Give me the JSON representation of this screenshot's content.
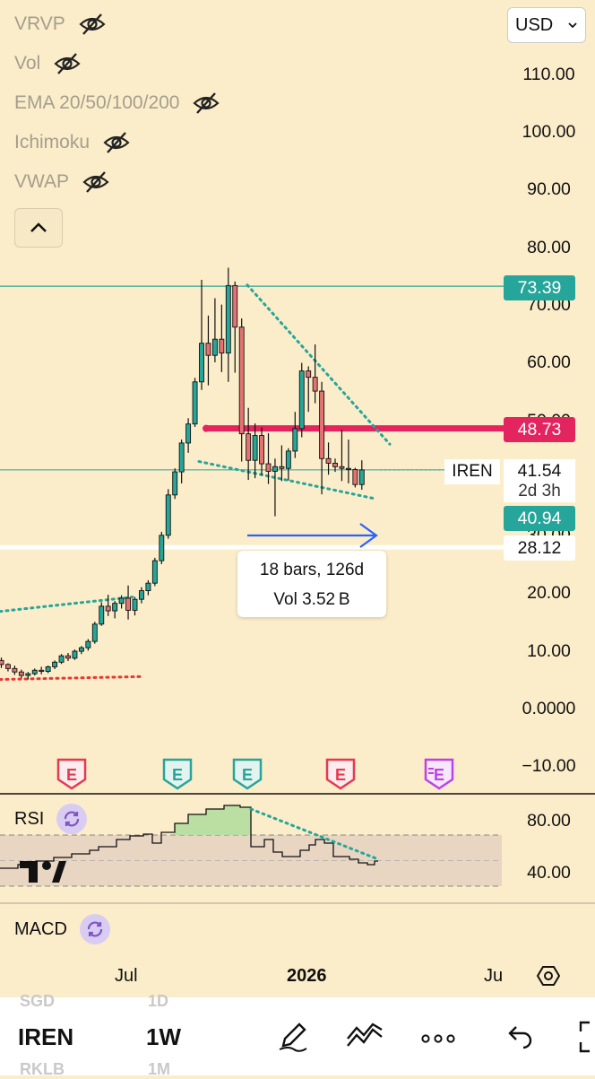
{
  "indicators": [
    {
      "label": "VRVP",
      "icon": "eye-off-icon"
    },
    {
      "label": "Vol",
      "icon": "eye-off-icon"
    },
    {
      "label": "EMA 20/50/100/200",
      "icon": "eye-off-icon"
    },
    {
      "label": "Ichimoku",
      "icon": "eye-off-icon"
    },
    {
      "label": "VWAP",
      "icon": "eye-off-icon"
    }
  ],
  "currency": {
    "value": "USD"
  },
  "measure": {
    "bars_label": "18 bars, 126d",
    "vol_label": "Vol 3.52 B"
  },
  "badges": {
    "level_high": "73.39",
    "level_resistance": "48.73",
    "symbol": "IREN",
    "last_price": "41.54",
    "countdown": "2d 3h",
    "level_low": "40.94",
    "level_white": "28.12"
  },
  "events": [
    "E",
    "E",
    "E",
    "E",
    "E"
  ],
  "rsi": {
    "label": "RSI",
    "axis": [
      "80.00",
      "40.00"
    ]
  },
  "macd": {
    "label": "MACD"
  },
  "time_axis": [
    "Jul",
    "2026",
    "Ju"
  ],
  "toolbar": {
    "symbol": "IREN",
    "symbol_prev": "SGD",
    "symbol_next": "RKLB",
    "interval": "1W",
    "interval_prev": "1D",
    "interval_next": "1M"
  },
  "colors": {
    "up": "#26a69a",
    "down": "#e57373",
    "level_pink": "#e91e63",
    "level_teal": "#26a69a",
    "arrow": "#2962ff",
    "background": "#fbedc9"
  },
  "chart_data": {
    "type": "candlestick",
    "interval": "1W",
    "yaxis": {
      "ticks": [
        "110.00",
        "100.00",
        "90.00",
        "80.00",
        "70.00",
        "60.00",
        "50.00",
        "40.00",
        "30.00",
        "20.00",
        "10.00",
        "0.0000",
        "−10.00"
      ],
      "range": [
        -12,
        114
      ]
    },
    "xaxis": {
      "labels": [
        "Jul",
        "2026",
        "Ju"
      ]
    },
    "candles": [
      [
        8.5,
        9.0,
        7.2,
        7.8
      ],
      [
        7.8,
        8.0,
        6.6,
        7.1
      ],
      [
        7.1,
        7.6,
        6.0,
        6.5
      ],
      [
        6.5,
        6.9,
        5.4,
        5.9
      ],
      [
        5.9,
        6.5,
        5.2,
        6.2
      ],
      [
        6.2,
        7.1,
        5.9,
        6.8
      ],
      [
        6.8,
        7.4,
        6.1,
        6.6
      ],
      [
        6.6,
        7.6,
        6.3,
        7.4
      ],
      [
        7.4,
        8.5,
        7.0,
        8.2
      ],
      [
        8.2,
        9.6,
        7.9,
        9.3
      ],
      [
        9.3,
        9.8,
        8.4,
        8.9
      ],
      [
        8.9,
        10.4,
        8.6,
        10.1
      ],
      [
        10.1,
        11.0,
        9.6,
        10.7
      ],
      [
        10.7,
        12.2,
        10.2,
        11.8
      ],
      [
        11.8,
        15.2,
        11.4,
        14.8
      ],
      [
        14.8,
        18.6,
        14.5,
        17.9
      ],
      [
        17.9,
        19.9,
        16.2,
        17.1
      ],
      [
        17.1,
        18.8,
        15.8,
        18.4
      ],
      [
        18.4,
        19.8,
        17.5,
        19.3
      ],
      [
        19.3,
        21.5,
        15.6,
        17.2
      ],
      [
        17.2,
        19.5,
        16.3,
        19.1
      ],
      [
        19.1,
        21.2,
        18.4,
        20.6
      ],
      [
        20.6,
        22.4,
        19.8,
        21.9
      ],
      [
        21.9,
        26.3,
        21.4,
        25.8
      ],
      [
        25.8,
        30.8,
        25.2,
        30.2
      ],
      [
        30.2,
        38.2,
        29.6,
        37.2
      ],
      [
        37.2,
        41.8,
        36.5,
        41.2
      ],
      [
        41.2,
        46.8,
        39.2,
        46.2
      ],
      [
        46.2,
        50.5,
        44.5,
        49.5
      ],
      [
        49.5,
        57.5,
        49.0,
        56.8
      ],
      [
        56.8,
        74.5,
        55.4,
        63.5
      ],
      [
        63.5,
        68.3,
        56.2,
        61.4
      ],
      [
        61.4,
        71.3,
        60.2,
        64.2
      ],
      [
        64.2,
        70.2,
        58.5,
        61.8
      ],
      [
        61.8,
        76.6,
        56.8,
        73.5
      ],
      [
        73.5,
        74.2,
        58.4,
        66.3
      ],
      [
        66.3,
        67.8,
        43.0,
        47.8
      ],
      [
        47.8,
        52.3,
        39.8,
        43.2
      ],
      [
        43.2,
        49.6,
        40.1,
        47.5
      ],
      [
        47.5,
        48.9,
        40.6,
        42.6
      ],
      [
        42.6,
        47.9,
        39.1,
        41.3
      ],
      [
        41.3,
        43.5,
        33.5,
        42.1
      ],
      [
        42.1,
        45.8,
        39.6,
        41.8
      ],
      [
        41.8,
        45.3,
        39.7,
        44.8
      ],
      [
        44.8,
        51.6,
        43.6,
        48.7
      ],
      [
        48.7,
        60.1,
        47.2,
        58.7
      ],
      [
        58.7,
        59.5,
        51.6,
        57.6
      ],
      [
        57.6,
        63.3,
        53.1,
        55.2
      ],
      [
        55.2,
        56.8,
        37.3,
        43.5
      ],
      [
        43.5,
        46.3,
        40.7,
        42.7
      ],
      [
        42.7,
        43.5,
        41.2,
        42.1
      ],
      [
        42.1,
        48.5,
        39.6,
        41.8
      ],
      [
        41.8,
        46.8,
        39.2,
        41.6
      ],
      [
        41.6,
        41.9,
        38.5,
        39.0
      ],
      [
        39.0,
        43.2,
        38.1,
        41.54
      ]
    ],
    "levels": [
      {
        "label": "73.39",
        "value": 73.39
      },
      {
        "label": "48.73",
        "value": 48.73
      },
      {
        "label": "41.54",
        "value": 41.54
      },
      {
        "label": "40.94",
        "value": 40.94
      },
      {
        "label": "28.12",
        "value": 28.12
      }
    ],
    "rsi_axis": [
      "80.00",
      "40.00"
    ]
  }
}
